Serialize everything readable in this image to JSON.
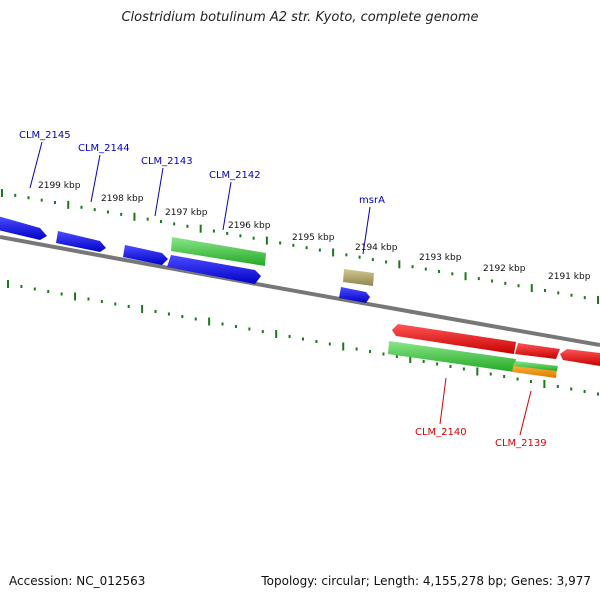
{
  "title": "Clostridium botulinum A2 str. Kyoto, complete genome",
  "accession": "Accession: NC_012563",
  "summary": "Topology: circular; Length: 4,155,278 bp; Genes: 3,977",
  "colors": {
    "backbone": "#808080",
    "ruler": "#1a7a1a",
    "cds_top": "#0000ee",
    "gene_green": "#3cc43c",
    "misc": "#b3a86a",
    "cds_bottom": "#e60000",
    "orange": "#ff9900",
    "label_top": "#0000cc",
    "label_bottom": "#dd0000"
  },
  "ticks": [
    "2199 kbp",
    "2198 kbp",
    "2197 kbp",
    "2196 kbp",
    "2195 kbp",
    "2194 kbp",
    "2193 kbp",
    "2192 kbp",
    "2191 kbp"
  ],
  "genes_top": [
    "CLM_2145",
    "CLM_2144",
    "CLM_2143",
    "CLM_2142",
    "msrA"
  ],
  "genes_bottom": [
    "CLM_2140",
    "CLM_2139"
  ]
}
